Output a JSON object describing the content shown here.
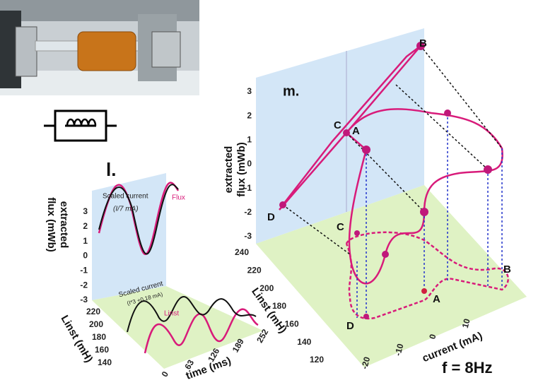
{
  "panel_l": {
    "label": "l.",
    "flux_axis": {
      "title_line1": "extracted",
      "title_line2": "flux (mWb)",
      "ticks": [
        3,
        2,
        1,
        0,
        -1,
        -2,
        -3
      ]
    },
    "linst_axis": {
      "title": "Linst (mH)",
      "ticks": [
        220,
        200,
        180,
        160,
        140
      ]
    },
    "time_axis": {
      "title": "time (ms)",
      "ticks": [
        0,
        63,
        126,
        189,
        252
      ]
    },
    "annotations": {
      "top_current": "Scaled current",
      "top_formula": "(I/7 mA)",
      "top_flux": "Flux",
      "bottom_current": "Scaled current",
      "bottom_formula": "(I*3 +0.18 mA)",
      "bottom_linst": "Linst"
    }
  },
  "panel_m": {
    "label": "m.",
    "flux_axis": {
      "title_line1": "extracted",
      "title_line2": "flux (mWb)",
      "ticks": [
        3,
        2,
        1,
        0,
        -1,
        -2,
        -3
      ]
    },
    "linst_axis": {
      "title": "Linst (mH)",
      "ticks": [
        240,
        220,
        200,
        180,
        160,
        140,
        120
      ]
    },
    "current_axis": {
      "title": "current (mA)",
      "ticks": [
        -20,
        -10,
        0,
        10
      ]
    },
    "points_top": [
      "A",
      "B",
      "C",
      "D"
    ],
    "points_bottom": [
      "A",
      "B",
      "C",
      "D"
    ],
    "frequency": "f = 8Hz"
  }
}
